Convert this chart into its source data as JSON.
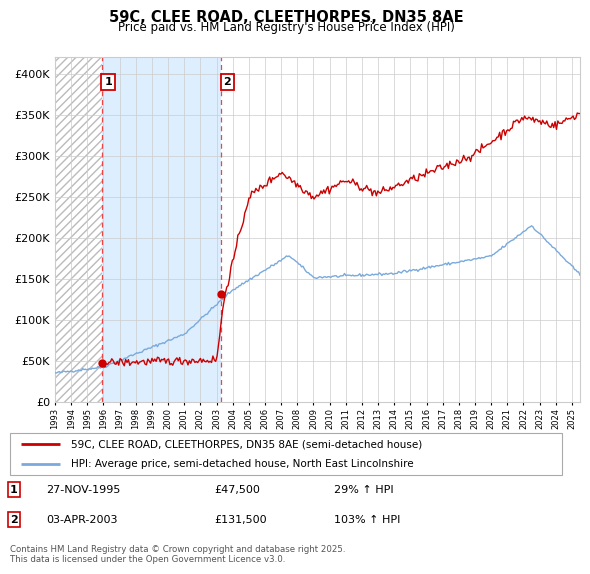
{
  "title": "59C, CLEE ROAD, CLEETHORPES, DN35 8AE",
  "subtitle": "Price paid vs. HM Land Registry's House Price Index (HPI)",
  "ylabel_values": [
    "£0",
    "£50K",
    "£100K",
    "£150K",
    "£200K",
    "£250K",
    "£300K",
    "£350K",
    "£400K"
  ],
  "ylim": [
    0,
    420000
  ],
  "yticks": [
    0,
    50000,
    100000,
    150000,
    200000,
    250000,
    300000,
    350000,
    400000
  ],
  "sale1_date": 1995.9,
  "sale1_price": 47500,
  "sale2_date": 2003.27,
  "sale2_price": 131500,
  "legend1": "59C, CLEE ROAD, CLEETHORPES, DN35 8AE (semi-detached house)",
  "legend2": "HPI: Average price, semi-detached house, North East Lincolnshire",
  "annotation1_date": "27-NOV-1995",
  "annotation1_price": "£47,500",
  "annotation1_hpi": "29% ↑ HPI",
  "annotation2_date": "03-APR-2003",
  "annotation2_price": "£131,500",
  "annotation2_hpi": "103% ↑ HPI",
  "footer": "Contains HM Land Registry data © Crown copyright and database right 2025.\nThis data is licensed under the Open Government Licence v3.0.",
  "line_color_property": "#cc0000",
  "line_color_hpi": "#7aaadd",
  "fill_between_color": "#ddeeff",
  "hatch_color": "#bbbbbb",
  "background_color": "#ffffff",
  "grid_color": "#cccccc",
  "xlim_left": 1993.0,
  "xlim_right": 2025.5
}
